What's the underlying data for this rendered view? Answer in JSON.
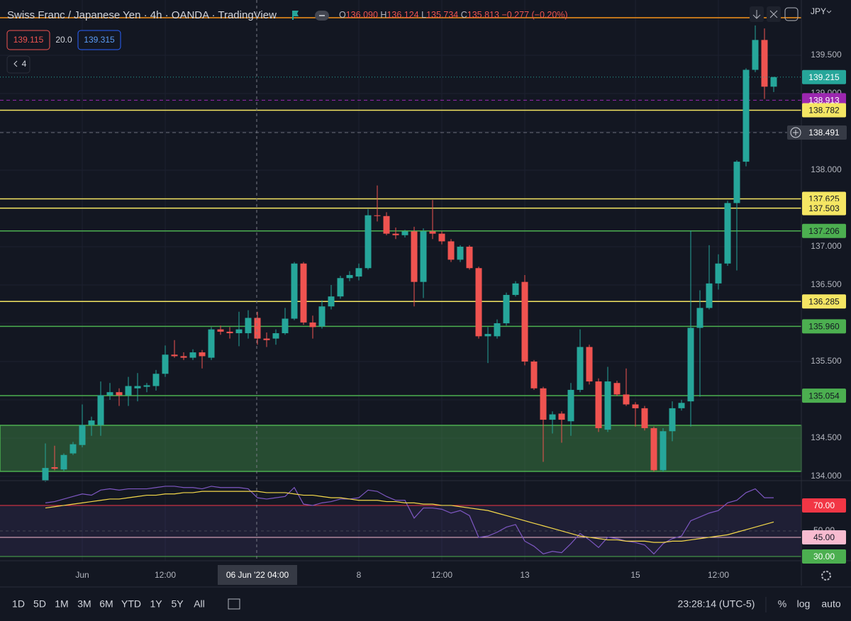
{
  "header": {
    "title": "Swiss Franc / Japanese Yen · 4h · OANDA · TradingView",
    "ohlc": [
      {
        "key": "O",
        "value": "136.090"
      },
      {
        "key": "H",
        "value": "136.124"
      },
      {
        "key": "L",
        "value": "135.734"
      },
      {
        "key": "C",
        "value": "135.813"
      }
    ],
    "change": "−0.277 (−0.20%)",
    "inputs": [
      "139.115",
      "20.0",
      "139.315"
    ],
    "indicator_count": "4",
    "currency": "JPY"
  },
  "chart_data": [
    {
      "type": "candlestick",
      "categories": [
        null,
        null,
        null,
        null,
        "Jun",
        null,
        null,
        null,
        null,
        null,
        null,
        null,
        null,
        "12:00",
        null,
        null,
        null,
        null,
        null,
        null,
        null,
        null,
        null,
        null,
        null,
        null,
        null,
        null,
        null,
        null,
        null,
        null,
        null,
        null,
        "8",
        null,
        null,
        null,
        null,
        null,
        null,
        null,
        null,
        "12:00",
        null,
        null,
        null,
        null,
        null,
        null,
        null,
        null,
        "13",
        null,
        null,
        null,
        null,
        null,
        null,
        null,
        null,
        null,
        null,
        null,
        "15",
        null,
        null,
        null,
        null,
        null,
        null,
        null,
        null,
        "12:00",
        null,
        null,
        null,
        null,
        null,
        null
      ],
      "open": [
        133.94,
        134.12,
        134.09,
        134.3,
        134.41,
        134.67,
        134.67,
        135.06,
        135.1,
        135.06,
        135.15,
        135.17,
        135.18,
        135.34,
        135.59,
        135.57,
        135.55,
        135.62,
        135.55,
        135.92,
        135.89,
        135.87,
        135.87,
        136.07,
        135.8,
        135.8,
        135.87,
        136.06,
        136.78,
        136.01,
        135.96,
        136.22,
        136.35,
        136.59,
        136.61,
        136.72,
        137.41,
        137.4,
        137.17,
        137.15,
        137.2,
        136.54,
        137.2,
        137.17,
        137.07,
        136.83,
        137.0,
        136.72,
        135.83,
        135.83,
        136.0,
        136.37,
        136.54,
        135.5,
        135.15,
        134.74,
        134.82,
        134.72,
        135.13,
        135.69,
        135.24,
        134.61,
        135.22,
        135.07,
        134.94,
        134.89,
        134.63,
        134.08,
        134.59,
        134.89,
        134.98,
        135.94,
        136.2,
        136.52,
        136.78,
        137.57,
        138.11,
        139.31,
        139.7,
        139.09
      ],
      "high": [
        134.43,
        134.4,
        134.3,
        134.45,
        134.94,
        134.78,
        135.24,
        135.22,
        135.15,
        135.3,
        135.35,
        135.22,
        135.39,
        135.71,
        135.78,
        135.62,
        135.66,
        135.65,
        135.95,
        135.97,
        135.95,
        136.15,
        136.17,
        136.15,
        135.88,
        135.92,
        136.2,
        136.8,
        136.8,
        136.1,
        136.3,
        136.5,
        136.62,
        136.68,
        136.78,
        137.49,
        137.8,
        137.45,
        137.25,
        137.22,
        137.26,
        137.24,
        137.61,
        137.2,
        137.1,
        137.02,
        137.02,
        136.74,
        135.95,
        136.05,
        136.4,
        136.55,
        136.63,
        135.52,
        135.17,
        134.85,
        134.85,
        135.22,
        135.92,
        135.72,
        135.28,
        135.43,
        135.25,
        135.41,
        134.97,
        134.92,
        134.65,
        134.63,
        134.98,
        135.0,
        137.21,
        136.43,
        137.02,
        136.9,
        137.6,
        138.13,
        139.33,
        139.89,
        139.85,
        139.22
      ],
      "low": [
        133.93,
        134.08,
        134.07,
        134.28,
        134.38,
        134.53,
        134.53,
        135.0,
        134.92,
        134.92,
        134.98,
        135.1,
        135.12,
        135.3,
        135.55,
        135.52,
        135.52,
        135.41,
        135.52,
        135.85,
        135.8,
        135.7,
        135.8,
        135.72,
        135.69,
        135.72,
        135.85,
        136.04,
        135.98,
        135.8,
        135.93,
        136.18,
        136.32,
        136.55,
        136.56,
        136.7,
        137.33,
        137.15,
        137.1,
        137.12,
        136.22,
        136.33,
        137.1,
        137.03,
        136.8,
        136.8,
        136.7,
        135.8,
        135.48,
        135.8,
        135.97,
        136.35,
        135.45,
        135.13,
        134.19,
        134.56,
        134.44,
        134.53,
        135.1,
        135.2,
        134.58,
        134.58,
        135.05,
        134.92,
        134.65,
        134.6,
        134.06,
        134.06,
        134.46,
        134.86,
        134.65,
        135.04,
        136.18,
        136.44,
        136.75,
        136.69,
        138.05,
        139.28,
        138.93,
        139.02
      ],
      "close": [
        134.11,
        134.1,
        134.28,
        134.42,
        134.67,
        134.73,
        135.06,
        135.1,
        135.06,
        135.18,
        135.18,
        135.19,
        135.34,
        135.59,
        135.57,
        135.55,
        135.62,
        135.57,
        135.92,
        135.89,
        135.87,
        135.92,
        136.07,
        135.8,
        135.78,
        135.87,
        136.06,
        136.78,
        136.01,
        135.95,
        136.22,
        136.35,
        136.59,
        136.63,
        136.72,
        137.41,
        137.4,
        137.17,
        137.15,
        137.2,
        136.54,
        137.2,
        137.17,
        137.07,
        136.83,
        137.0,
        136.72,
        135.83,
        135.86,
        136.0,
        136.37,
        136.52,
        135.5,
        135.15,
        134.74,
        134.81,
        134.74,
        135.13,
        135.69,
        135.24,
        134.63,
        135.24,
        135.07,
        134.94,
        134.89,
        134.63,
        134.08,
        134.59,
        134.89,
        134.96,
        135.94,
        136.2,
        136.52,
        136.78,
        137.57,
        138.11,
        139.31,
        139.7,
        139.09,
        139.215
      ],
      "up_color": "#26a69a",
      "down_color": "#ef5350",
      "ylim": [
        133.963,
        140.222
      ],
      "yticks": [
        {
          "value": 134,
          "label": "134.000"
        },
        {
          "value": 134.5,
          "label": "134.500"
        },
        {
          "value": 135,
          "label": "135.000"
        },
        {
          "value": 135.5,
          "label": "135.500"
        },
        {
          "value": 136,
          "label": "136.000"
        },
        {
          "value": 136.5,
          "label": "136.500"
        },
        {
          "value": 137,
          "label": "137.000"
        },
        {
          "value": 137.5,
          "label": "137.500"
        },
        {
          "value": 138,
          "label": "138.000"
        },
        {
          "value": 138.5,
          "label": "138.500"
        },
        {
          "value": 139,
          "label": "139.000"
        },
        {
          "value": 139.5,
          "label": "139.500"
        }
      ],
      "grid": true,
      "levels": [
        {
          "value": 139.99,
          "color": "#f7931a"
        },
        {
          "value": 138.913,
          "label": "138.913",
          "color": "#9c27b0",
          "dashed": true
        },
        {
          "value": 138.782,
          "label": "138.782",
          "color": "#f5e663"
        },
        {
          "value": 138.491,
          "label": "138.491",
          "color": "#6a6d78",
          "dashed": true
        },
        {
          "value": 137.625,
          "label": "137.625",
          "color": "#f5e663"
        },
        {
          "value": 137.503,
          "label": "137.503",
          "color": "#f5e663"
        },
        {
          "value": 137.206,
          "label": "137.206",
          "color": "#4caf50"
        },
        {
          "value": 136.285,
          "label": "136.285",
          "color": "#f5e663"
        },
        {
          "value": 135.96,
          "label": "135.960",
          "color": "#4caf50"
        },
        {
          "value": 135.054,
          "label": "135.054",
          "color": "#4caf50"
        }
      ],
      "last_price": {
        "value": 139.215,
        "label": "139.215",
        "color": "#26a69a"
      },
      "zone": {
        "from": 134.065,
        "to": 134.667,
        "color": "#4caf50"
      },
      "crosshair_label": "06 Jun '22 04:00"
    },
    {
      "type": "line",
      "series": [
        {
          "color": "#7e57c2",
          "values": [
            72,
            73,
            75,
            77,
            79,
            78,
            82,
            83,
            82,
            83,
            83,
            83,
            84,
            85,
            85,
            84,
            84,
            83,
            85,
            84,
            84,
            84,
            83,
            76,
            75,
            76,
            77,
            84,
            71,
            70,
            72,
            73,
            75,
            75,
            76,
            82,
            81,
            77,
            74,
            74,
            60,
            68,
            68,
            67,
            64,
            66,
            62,
            45,
            46,
            49,
            53,
            55,
            42,
            38,
            32,
            34,
            33,
            40,
            48,
            43,
            37,
            45,
            44,
            42,
            41,
            39,
            32,
            40,
            44,
            46,
            58,
            61,
            64,
            66,
            72,
            74,
            80,
            83,
            76,
            76
          ]
        },
        {
          "color": "#f5d94a",
          "values": [
            68,
            69,
            70,
            71,
            72,
            73,
            74,
            75,
            75,
            76,
            77,
            78,
            78,
            79,
            79,
            80,
            80,
            81,
            81,
            81,
            81,
            81,
            81,
            81,
            80,
            80,
            80,
            79,
            78,
            78,
            77,
            76,
            76,
            75,
            74,
            74,
            74,
            73,
            73,
            72,
            72,
            71,
            71,
            70,
            70,
            69,
            68,
            67,
            66,
            64,
            62,
            60,
            58,
            56,
            54,
            52,
            50,
            48,
            46,
            45,
            44,
            43,
            43,
            42,
            42,
            42,
            41,
            41,
            42,
            42,
            43,
            44,
            45,
            46,
            47,
            49,
            51,
            53,
            55,
            57
          ]
        }
      ],
      "ylim": [
        27.2,
        88.3
      ],
      "yticks": [
        {
          "value": 70,
          "label": "70.00",
          "color": "#f23645"
        },
        {
          "value": 50,
          "label": "50.00",
          "color": "#434651",
          "dashed": true
        },
        {
          "value": 45,
          "label": "45.00",
          "color": "#f8bbd0"
        },
        {
          "value": 30,
          "label": "30.00",
          "color": "#4caf50"
        }
      ],
      "band_color": "#7e57c2"
    }
  ],
  "footer": {
    "ranges": [
      "1D",
      "5D",
      "1M",
      "3M",
      "6M",
      "YTD",
      "1Y",
      "5Y",
      "All"
    ],
    "clock": "23:28:14 (UTC-5)",
    "percent": "%",
    "log": "log",
    "auto": "auto"
  }
}
